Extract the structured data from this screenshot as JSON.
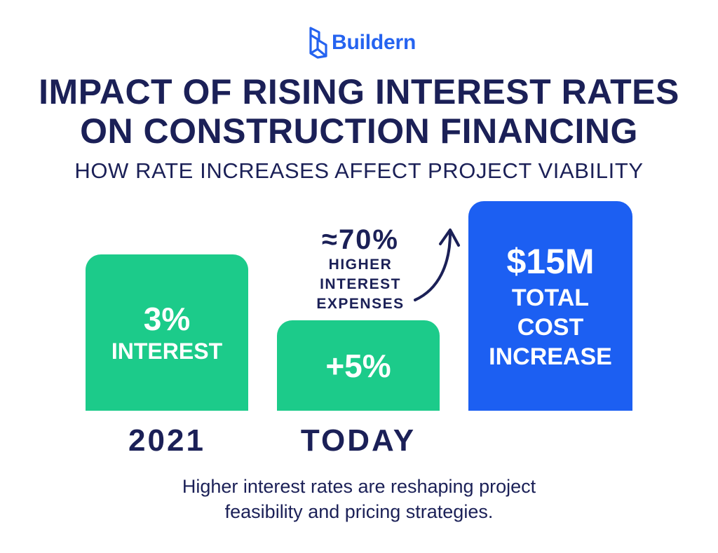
{
  "brand": {
    "name": "Buildern",
    "logo_icon": "building-cube-icon",
    "color": "#2563f0"
  },
  "title_line_1": "IMPACT OF RISING INTEREST RATES",
  "title_line_2": "ON CONSTRUCTION FINANCING",
  "subtitle": "HOW RATE INCREASES AFFECT PROJECT VIABILITY",
  "bars": {
    "rate_2021": {
      "value": "3%",
      "label": "INTEREST",
      "color": "#1ccb8a"
    },
    "rate_today": {
      "value": "+5%",
      "color": "#1ccb8a"
    },
    "cost": {
      "value": "$15M",
      "label_line_1": "TOTAL",
      "label_line_2": "COST",
      "label_line_3": "INCREASE",
      "color": "#1c5ff2"
    }
  },
  "annotation": {
    "value": "≈70%",
    "line_1": "HIGHER",
    "line_2": "INTEREST",
    "line_3": "EXPENSES",
    "icon": "curved-arrow-up-icon"
  },
  "periods": {
    "first": "2021",
    "second": "TODAY"
  },
  "footer": {
    "line_1": "Higher interest rates are reshaping project",
    "line_2": "feasibility and pricing strategies."
  },
  "colors": {
    "navy": "#1b2057",
    "green": "#1ccb8a",
    "blue": "#1c5ff2"
  }
}
